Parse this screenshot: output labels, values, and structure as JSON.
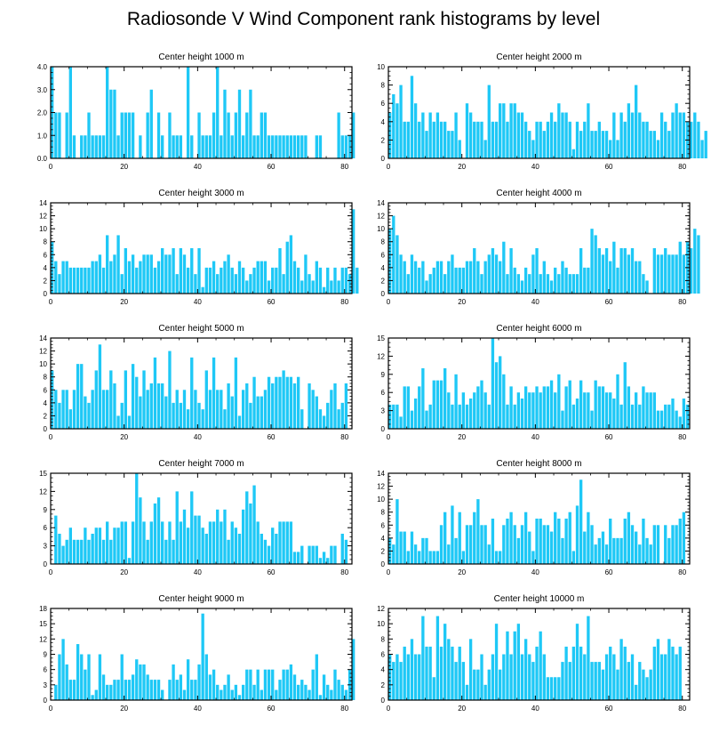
{
  "title": "Radiosonde V Wind Component rank histograms by level",
  "bar_color": "#1ec8f6",
  "chart_data": [
    {
      "type": "bar",
      "title": "Center height 1000 m",
      "ylim": [
        0,
        4
      ],
      "yticks": [
        "0.0",
        "1.0",
        "2.0",
        "3.0",
        "4.0"
      ],
      "xticks": [
        "0",
        "20",
        "40",
        "60",
        "80"
      ],
      "x_start": 0,
      "values": [
        4,
        2,
        2,
        0,
        2,
        4,
        1,
        0,
        1,
        1,
        2,
        1,
        1,
        1,
        1,
        4,
        3,
        3,
        1,
        2,
        2,
        2,
        2,
        0,
        1,
        0,
        2,
        3,
        0,
        2,
        1,
        0,
        2,
        1,
        1,
        1,
        0,
        4,
        1,
        0,
        2,
        1,
        1,
        1,
        2,
        4,
        1,
        3,
        2,
        1,
        2,
        3,
        1,
        2,
        3,
        1,
        1,
        2,
        2,
        1,
        1,
        1,
        1,
        1,
        1,
        1,
        1,
        1,
        1,
        1,
        0,
        0,
        1,
        1,
        0,
        0,
        0,
        0,
        2,
        1,
        1,
        1,
        2
      ]
    },
    {
      "type": "bar",
      "title": "Center height 2000 m",
      "ylim": [
        0,
        10
      ],
      "yticks": [
        "0",
        "2",
        "4",
        "6",
        "8",
        "10"
      ],
      "xticks": [
        "0",
        "20",
        "40",
        "60",
        "80"
      ],
      "x_start": 0,
      "values": [
        5,
        7,
        6,
        8,
        4,
        4,
        9,
        6,
        4,
        5,
        3,
        5,
        4,
        5,
        4,
        4,
        3,
        3,
        5,
        2,
        0,
        6,
        5,
        4,
        4,
        4,
        2,
        8,
        4,
        4,
        6,
        6,
        4,
        6,
        6,
        5,
        5,
        4,
        3,
        2,
        4,
        4,
        3,
        4,
        5,
        4,
        6,
        5,
        5,
        4,
        1,
        4,
        3,
        4,
        6,
        3,
        3,
        4,
        3,
        3,
        2,
        5,
        2,
        5,
        4,
        6,
        5,
        8,
        5,
        4,
        4,
        3,
        3,
        2,
        5,
        4,
        3,
        5,
        6,
        5,
        5,
        4,
        4,
        5,
        4,
        2,
        3
      ]
    },
    {
      "type": "bar",
      "title": "Center height 3000 m",
      "ylim": [
        0,
        14
      ],
      "yticks": [
        "0",
        "2",
        "4",
        "6",
        "8",
        "10",
        "12",
        "14"
      ],
      "xticks": [
        "0",
        "20",
        "40",
        "60",
        "80"
      ],
      "x_start": 0,
      "values": [
        8,
        5,
        3,
        5,
        5,
        4,
        4,
        4,
        4,
        4,
        4,
        5,
        5,
        6,
        4,
        9,
        5,
        6,
        9,
        3,
        7,
        5,
        6,
        4,
        5,
        6,
        6,
        6,
        4,
        5,
        7,
        6,
        6,
        7,
        3,
        7,
        6,
        4,
        7,
        3,
        7,
        1,
        4,
        4,
        5,
        3,
        4,
        5,
        6,
        4,
        3,
        5,
        4,
        2,
        3,
        4,
        5,
        5,
        5,
        2,
        4,
        4,
        7,
        3,
        8,
        9,
        5,
        4,
        2,
        6,
        3,
        2,
        5,
        4,
        1,
        4,
        2,
        4,
        2,
        4,
        4,
        3,
        13,
        4
      ]
    },
    {
      "type": "bar",
      "title": "Center height 4000 m",
      "ylim": [
        0,
        14
      ],
      "yticks": [
        "0",
        "2",
        "4",
        "6",
        "8",
        "10",
        "12",
        "14"
      ],
      "xticks": [
        "0",
        "20",
        "40",
        "60",
        "80"
      ],
      "x_start": 0,
      "values": [
        10,
        12,
        9,
        6,
        5,
        3,
        6,
        5,
        4,
        5,
        2,
        3,
        4,
        5,
        5,
        3,
        5,
        6,
        4,
        4,
        4,
        5,
        5,
        7,
        5,
        3,
        5,
        6,
        7,
        6,
        5,
        8,
        3,
        7,
        4,
        3,
        2,
        4,
        3,
        6,
        7,
        3,
        5,
        3,
        2,
        4,
        3,
        5,
        4,
        3,
        3,
        3,
        7,
        4,
        4,
        10,
        9,
        7,
        6,
        7,
        5,
        8,
        4,
        7,
        7,
        6,
        7,
        5,
        5,
        3,
        2,
        0,
        7,
        6,
        6,
        7,
        6,
        6,
        6,
        8,
        6,
        8,
        7,
        10,
        9
      ]
    },
    {
      "type": "bar",
      "title": "Center height 5000 m",
      "ylim": [
        0,
        14
      ],
      "yticks": [
        "0",
        "2",
        "4",
        "6",
        "8",
        "10",
        "12",
        "14"
      ],
      "xticks": [
        "0",
        "20",
        "40",
        "60",
        "80"
      ],
      "x_start": 0,
      "values": [
        9,
        6,
        4,
        6,
        6,
        3,
        6,
        10,
        10,
        5,
        4,
        6,
        9,
        13,
        6,
        6,
        9,
        7,
        2,
        4,
        9,
        2,
        10,
        8,
        5,
        9,
        6,
        7,
        11,
        7,
        7,
        5,
        12,
        4,
        6,
        4,
        6,
        3,
        11,
        6,
        4,
        3,
        9,
        6,
        11,
        6,
        6,
        3,
        7,
        5,
        11,
        2,
        6,
        7,
        4,
        8,
        5,
        5,
        6,
        8,
        7,
        8,
        8,
        9,
        8,
        8,
        7,
        8,
        3,
        0,
        7,
        6,
        5,
        3,
        2,
        4,
        6,
        7,
        3,
        4,
        7
      ]
    },
    {
      "type": "bar",
      "title": "Center height 6000 m",
      "ylim": [
        0,
        15
      ],
      "yticks": [
        "0",
        "3",
        "6",
        "9",
        "12",
        "15"
      ],
      "xticks": [
        "0",
        "20",
        "40",
        "60",
        "80"
      ],
      "x_start": 0,
      "values": [
        4,
        4,
        4,
        2,
        7,
        7,
        3,
        5,
        7,
        10,
        3,
        4,
        8,
        8,
        8,
        10,
        6,
        4,
        9,
        4,
        6,
        4,
        5,
        6,
        7,
        8,
        6,
        4,
        15,
        11,
        12,
        9,
        4,
        7,
        4,
        6,
        5,
        7,
        6,
        6,
        7,
        6,
        7,
        7,
        8,
        6,
        9,
        3,
        7,
        8,
        4,
        5,
        8,
        6,
        6,
        3,
        8,
        7,
        7,
        6,
        6,
        5,
        9,
        4,
        11,
        7,
        4,
        6,
        4,
        7,
        6,
        6,
        6,
        3,
        3,
        4,
        4,
        5,
        3,
        2,
        5,
        4
      ]
    },
    {
      "type": "bar",
      "title": "Center height 7000 m",
      "ylim": [
        0,
        15
      ],
      "yticks": [
        "0",
        "3",
        "6",
        "9",
        "12",
        "15"
      ],
      "xticks": [
        "0",
        "20",
        "40",
        "60",
        "80"
      ],
      "x_start": 0,
      "values": [
        0,
        8,
        5,
        3,
        4,
        6,
        4,
        4,
        4,
        6,
        4,
        5,
        6,
        6,
        4,
        7,
        4,
        6,
        6,
        7,
        7,
        1,
        7,
        15,
        11,
        7,
        4,
        7,
        10,
        11,
        7,
        4,
        7,
        4,
        12,
        7,
        9,
        6,
        12,
        8,
        8,
        6,
        5,
        7,
        7,
        9,
        7,
        9,
        4,
        7,
        6,
        5,
        9,
        12,
        10,
        13,
        7,
        5,
        4,
        3,
        6,
        5,
        7,
        7,
        7,
        7,
        2,
        2,
        3,
        0,
        3,
        3,
        3,
        1,
        2,
        1,
        3,
        3,
        0,
        5,
        4
      ]
    },
    {
      "type": "bar",
      "title": "Center height 8000 m",
      "ylim": [
        0,
        14
      ],
      "yticks": [
        "0",
        "2",
        "4",
        "6",
        "8",
        "10",
        "12",
        "14"
      ],
      "xticks": [
        "0",
        "20",
        "40",
        "60",
        "80"
      ],
      "x_start": 0,
      "values": [
        4,
        3,
        10,
        5,
        5,
        2,
        5,
        3,
        2,
        4,
        4,
        2,
        2,
        2,
        6,
        8,
        3,
        9,
        4,
        8,
        2,
        6,
        6,
        8,
        10,
        6,
        6,
        3,
        7,
        2,
        2,
        6,
        7,
        8,
        6,
        4,
        6,
        8,
        5,
        2,
        7,
        7,
        6,
        6,
        5,
        8,
        7,
        4,
        7,
        8,
        2,
        9,
        13,
        5,
        8,
        6,
        3,
        4,
        5,
        3,
        7,
        4,
        4,
        4,
        7,
        8,
        6,
        5,
        3,
        7,
        4,
        3,
        6,
        6,
        0,
        6,
        4,
        6,
        6,
        7,
        8
      ]
    },
    {
      "type": "bar",
      "title": "Center height 9000 m",
      "ylim": [
        0,
        18
      ],
      "yticks": [
        "0",
        "3",
        "6",
        "9",
        "12",
        "15",
        "18"
      ],
      "xticks": [
        "0",
        "20",
        "40",
        "60",
        "80"
      ],
      "x_start": 0,
      "values": [
        0,
        3,
        9,
        12,
        7,
        4,
        4,
        11,
        9,
        6,
        9,
        1,
        2,
        9,
        5,
        3,
        3,
        4,
        4,
        9,
        4,
        4,
        5,
        8,
        7,
        7,
        5,
        4,
        4,
        4,
        2,
        0,
        4,
        7,
        4,
        5,
        2,
        8,
        4,
        4,
        7,
        17,
        9,
        5,
        6,
        3,
        2,
        3,
        5,
        2,
        3,
        1,
        3,
        6,
        6,
        3,
        6,
        2,
        6,
        6,
        6,
        2,
        4,
        6,
        6,
        7,
        5,
        3,
        4,
        3,
        2,
        6,
        9,
        1,
        5,
        3,
        2,
        6,
        4,
        3,
        2,
        6,
        12
      ]
    },
    {
      "type": "bar",
      "title": "Center height 10000 m",
      "ylim": [
        0,
        12
      ],
      "yticks": [
        "0",
        "2",
        "4",
        "6",
        "8",
        "10",
        "12"
      ],
      "xticks": [
        "0",
        "20",
        "40",
        "60",
        "80"
      ],
      "x_start": 0,
      "values": [
        6,
        5,
        6,
        5,
        7,
        6,
        8,
        6,
        6,
        11,
        7,
        7,
        3,
        11,
        7,
        10,
        8,
        7,
        5,
        7,
        5,
        2,
        8,
        4,
        4,
        6,
        2,
        4,
        6,
        10,
        4,
        6,
        9,
        6,
        9,
        10,
        6,
        8,
        6,
        5,
        7,
        9,
        6,
        3,
        3,
        3,
        3,
        5,
        7,
        5,
        7,
        10,
        7,
        6,
        11,
        5,
        5,
        5,
        4,
        6,
        7,
        6,
        4,
        8,
        7,
        5,
        6,
        2,
        5,
        4,
        3,
        4,
        7,
        8,
        6,
        6,
        8,
        7,
        6,
        7
      ]
    }
  ]
}
